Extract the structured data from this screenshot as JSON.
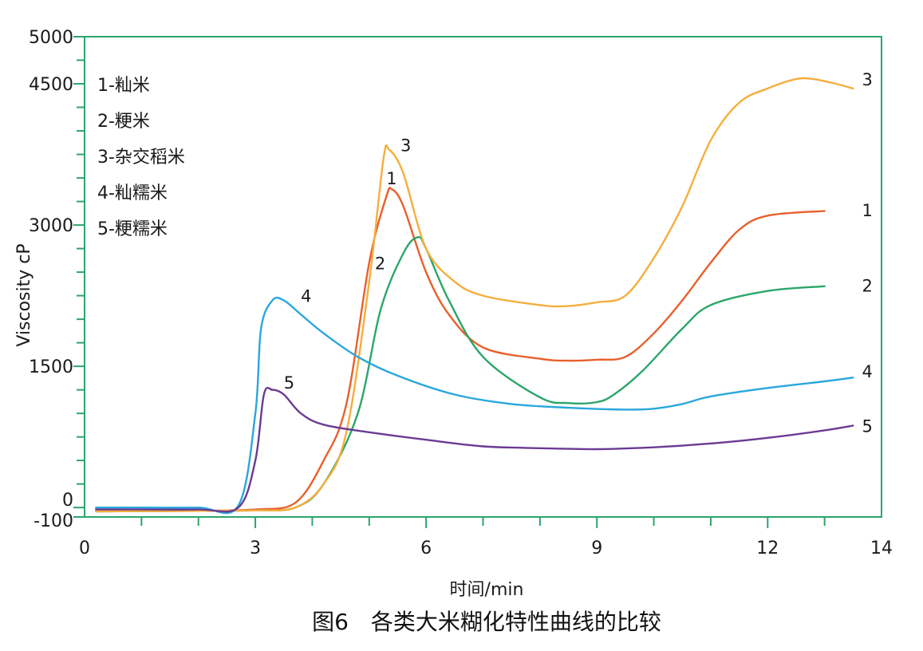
{
  "colors": {
    "frame": "#2aa66a",
    "series_1": "#e8602c",
    "series_2": "#2aa66a",
    "series_3": "#f5ae3c",
    "series_4": "#2aa7dd",
    "series_5": "#6b3a94"
  },
  "chart_data": {
    "type": "line",
    "xlabel": "时间/min",
    "ylabel": "Viscosity cP",
    "caption": "图6　各类大米糊化特性曲线的比较",
    "xlim": [
      0,
      14
    ],
    "ylim": [
      -100,
      5000
    ],
    "x_ticks": [
      "0",
      "3",
      "6",
      "9",
      "12",
      "14"
    ],
    "x_tick_values": [
      0,
      3,
      6,
      9,
      12,
      14
    ],
    "y_ticks": [
      "5000",
      "4500",
      "3000",
      "1500",
      "0",
      "-100"
    ],
    "y_tick_values": [
      5000,
      4500,
      3000,
      1500,
      0,
      -100
    ],
    "grid": false,
    "legend_position": "top-left",
    "legend": [
      "1-籼米",
      "2-粳米",
      "3-杂交稻米",
      "4-籼糯米",
      "5-粳糯米"
    ],
    "series": [
      {
        "name": "1",
        "color_key": "series_1",
        "points": [
          [
            0.2,
            -40
          ],
          [
            2,
            -35
          ],
          [
            3,
            -20
          ],
          [
            3.7,
            50
          ],
          [
            4.2,
            500
          ],
          [
            4.6,
            1100
          ],
          [
            5,
            2600
          ],
          [
            5.3,
            3300
          ],
          [
            5.4,
            3380
          ],
          [
            5.6,
            3200
          ],
          [
            6,
            2500
          ],
          [
            6.4,
            2050
          ],
          [
            7,
            1700
          ],
          [
            8,
            1580
          ],
          [
            8.5,
            1560
          ],
          [
            9,
            1570
          ],
          [
            9.5,
            1600
          ],
          [
            10,
            1850
          ],
          [
            10.5,
            2200
          ],
          [
            11,
            2600
          ],
          [
            11.5,
            2950
          ],
          [
            12,
            3100
          ],
          [
            13,
            3150
          ]
        ]
      },
      {
        "name": "2",
        "color_key": "series_2",
        "points": [
          [
            0.2,
            -40
          ],
          [
            2,
            -35
          ],
          [
            3,
            -30
          ],
          [
            3.7,
            0
          ],
          [
            4.2,
            250
          ],
          [
            4.8,
            1000
          ],
          [
            5.2,
            2100
          ],
          [
            5.6,
            2700
          ],
          [
            5.85,
            2870
          ],
          [
            6,
            2750
          ],
          [
            6.4,
            2200
          ],
          [
            7,
            1600
          ],
          [
            8,
            1170
          ],
          [
            8.5,
            1110
          ],
          [
            9,
            1120
          ],
          [
            9.3,
            1200
          ],
          [
            9.8,
            1450
          ],
          [
            10.5,
            1900
          ],
          [
            11,
            2150
          ],
          [
            12,
            2300
          ],
          [
            13,
            2350
          ]
        ]
      },
      {
        "name": "3",
        "color_key": "series_3",
        "points": [
          [
            0.2,
            -40
          ],
          [
            2,
            -35
          ],
          [
            3,
            -30
          ],
          [
            3.7,
            0
          ],
          [
            4.2,
            250
          ],
          [
            4.6,
            800
          ],
          [
            5,
            2400
          ],
          [
            5.25,
            3700
          ],
          [
            5.35,
            3800
          ],
          [
            5.6,
            3550
          ],
          [
            6,
            2750
          ],
          [
            6.5,
            2400
          ],
          [
            7,
            2250
          ],
          [
            8,
            2150
          ],
          [
            8.5,
            2140
          ],
          [
            9,
            2180
          ],
          [
            9.5,
            2250
          ],
          [
            10,
            2650
          ],
          [
            10.5,
            3200
          ],
          [
            11,
            3900
          ],
          [
            11.5,
            4300
          ],
          [
            12,
            4450
          ],
          [
            12.5,
            4550
          ],
          [
            12.8,
            4550
          ],
          [
            13.2,
            4500
          ],
          [
            13.5,
            4450
          ]
        ]
      },
      {
        "name": "4",
        "color_key": "series_4",
        "points": [
          [
            0.2,
            0
          ],
          [
            1,
            0
          ],
          [
            2,
            0
          ],
          [
            2.7,
            20
          ],
          [
            3,
            1000
          ],
          [
            3.1,
            1900
          ],
          [
            3.3,
            2200
          ],
          [
            3.5,
            2200
          ],
          [
            3.8,
            2050
          ],
          [
            4.2,
            1850
          ],
          [
            4.8,
            1600
          ],
          [
            5.5,
            1400
          ],
          [
            6.5,
            1200
          ],
          [
            7.5,
            1100
          ],
          [
            8.5,
            1060
          ],
          [
            9.5,
            1040
          ],
          [
            10,
            1050
          ],
          [
            10.5,
            1100
          ],
          [
            11,
            1180
          ],
          [
            12,
            1270
          ],
          [
            13,
            1340
          ],
          [
            13.5,
            1380
          ]
        ]
      },
      {
        "name": "5",
        "color_key": "series_5",
        "points": [
          [
            0.2,
            -20
          ],
          [
            1,
            -20
          ],
          [
            2,
            -20
          ],
          [
            2.7,
            0
          ],
          [
            3,
            500
          ],
          [
            3.15,
            1200
          ],
          [
            3.3,
            1250
          ],
          [
            3.5,
            1200
          ],
          [
            3.8,
            1000
          ],
          [
            4.2,
            880
          ],
          [
            5,
            800
          ],
          [
            6,
            720
          ],
          [
            7,
            650
          ],
          [
            8,
            630
          ],
          [
            9,
            620
          ],
          [
            10,
            640
          ],
          [
            11,
            680
          ],
          [
            12,
            740
          ],
          [
            13,
            820
          ],
          [
            13.5,
            870
          ]
        ]
      }
    ],
    "end_labels": [
      {
        "text": "3",
        "x": 13.6,
        "y": 4550
      },
      {
        "text": "1",
        "x": 13.6,
        "y": 3160
      },
      {
        "text": "2",
        "x": 13.6,
        "y": 2360
      },
      {
        "text": "4",
        "x": 13.6,
        "y": 1450
      },
      {
        "text": "5",
        "x": 13.6,
        "y": 870
      }
    ],
    "peak_labels": [
      {
        "text": "3",
        "x": 5.55,
        "y": 3850
      },
      {
        "text": "1",
        "x": 5.3,
        "y": 3500
      },
      {
        "text": "2",
        "x": 5.1,
        "y": 2600
      },
      {
        "text": "4",
        "x": 3.8,
        "y": 2250
      },
      {
        "text": "5",
        "x": 3.5,
        "y": 1330
      }
    ]
  }
}
